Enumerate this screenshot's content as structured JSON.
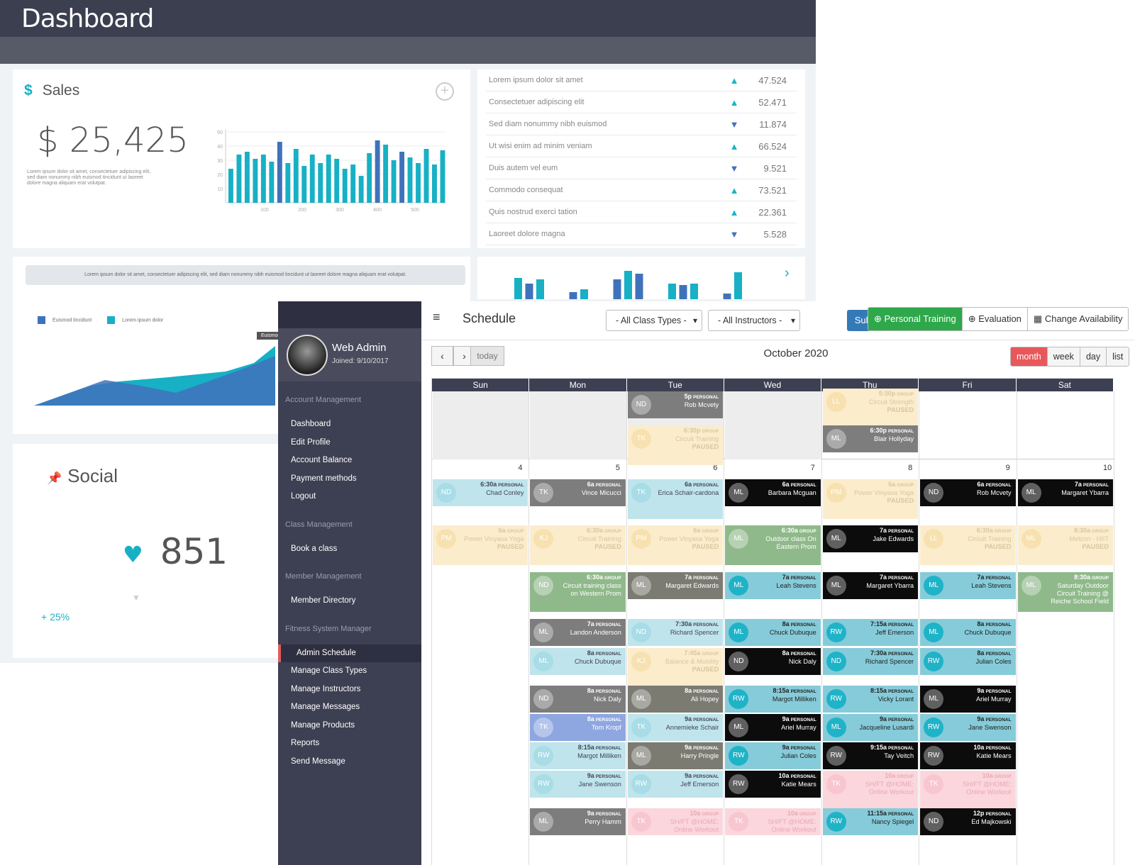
{
  "dashboard": {
    "title": "Dashboard",
    "sales": {
      "label": "Sales",
      "value": "$ 25,425",
      "desc": "Lorem ipsum dolor sit amet, consectetuer adipiscing elit, sed diam nonummy nibh euismod tincidunt ut laoreet dolore magna aliquam erat volutpat."
    },
    "stats": [
      {
        "label": "Lorem ipsum dolor sit amet",
        "dir": "up",
        "value": "47.524"
      },
      {
        "label": "Consectetuer adipiscing elit",
        "dir": "up",
        "value": "52.471"
      },
      {
        "label": "Sed diam nonummy nibh euismod",
        "dir": "down",
        "value": "11.874"
      },
      {
        "label": "Ut wisi enim ad minim veniam",
        "dir": "up",
        "value": "66.524"
      },
      {
        "label": "Duis autem vel eum",
        "dir": "down",
        "value": "9.521"
      },
      {
        "label": "Commodo consequat",
        "dir": "up",
        "value": "73.521"
      },
      {
        "label": "Quis nostrud exerci tation",
        "dir": "up",
        "value": "22.361"
      },
      {
        "label": "Laoreet dolore magna",
        "dir": "down",
        "value": "5.528"
      }
    ],
    "area": {
      "banner": "Lorem ipsum dolor sit amet, consectetuer adipiscing elit, sed diam nonummy nibh euismod tincidunt ut laoreet dolore magna aliquam erat volutpat.",
      "legend1": "Euismod tincidunt",
      "legend2": "Lorem ipsum dolor",
      "tooltip": "Euismod t"
    },
    "social": {
      "label": "Social",
      "value": "851",
      "pct": "+ 25%"
    },
    "colors": {
      "teal": "#17b0c5",
      "blue": "#4072bb"
    }
  },
  "chart_data": [
    {
      "type": "bar",
      "y_ticks": [
        "50",
        "40",
        "30",
        "20",
        "10"
      ],
      "x_ticks": [
        "100",
        "200",
        "300",
        "400",
        "500"
      ],
      "ylim": [
        0,
        50
      ],
      "series": [
        {
          "values": [
            24,
            34,
            36,
            31,
            34,
            29,
            43,
            28,
            38,
            26,
            34,
            28,
            34,
            31,
            24,
            27,
            19,
            35,
            44,
            41,
            30,
            36,
            32,
            28,
            38,
            27,
            37
          ]
        }
      ],
      "highlight_color": "#4072bb",
      "color": "#17b0c5",
      "highlight_idx": [
        6,
        18,
        21
      ]
    },
    {
      "type": "area",
      "series": [
        {
          "name": "Euismod tincidunt",
          "color": "#4072bb"
        },
        {
          "name": "Lorem ipsum dolor",
          "color": "#17b0c5"
        }
      ]
    },
    {
      "type": "bar",
      "values": [
        30,
        22,
        28,
        0,
        0,
        10,
        14,
        0,
        0,
        28,
        40,
        36,
        0,
        0,
        22,
        20,
        22,
        0,
        0,
        8,
        38
      ],
      "colors": [
        "#17b0c5",
        "#4072bb"
      ]
    }
  ],
  "sidebar": {
    "user": "Web Admin",
    "joined": "Joined: 9/10/2017",
    "sections": [
      {
        "title": "Account Management",
        "items": [
          "Dashboard",
          "Edit Profile",
          "Account Balance",
          "Payment methods",
          "Logout"
        ]
      },
      {
        "title": "Class Management",
        "items": [
          "Book a class"
        ]
      },
      {
        "title": "Member Management",
        "items": [
          "Member Directory"
        ]
      },
      {
        "title": "Fitness System Manager",
        "items": [
          "Admin Schedule",
          "Manage Class Types",
          "Manage Instructors",
          "Manage Messages",
          "Manage Products",
          "Reports",
          "Send Message"
        ]
      }
    ],
    "active": "Admin Schedule"
  },
  "schedule": {
    "title": "Schedule",
    "class_filter": "- All Class Types -",
    "instr_filter": "- All Instructors -",
    "submit": "Submit",
    "actions": [
      "Personal Training",
      "Evaluation",
      "Change Availability"
    ],
    "today": "today",
    "month": "October 2020",
    "views": [
      "month",
      "week",
      "day",
      "list"
    ],
    "dows": [
      "Sun",
      "Mon",
      "Tue",
      "Wed",
      "Thu",
      "Fri",
      "Sat"
    ],
    "day_numbers": [
      "4",
      "5",
      "6",
      "7",
      "8",
      "9",
      "10"
    ],
    "events": [
      {
        "c": 2,
        "y": 0,
        "cls": "gray",
        "av": "ND",
        "time": "5p",
        "kind": "PERSONAL",
        "name": "Rob Mcvety"
      },
      {
        "c": 4,
        "y": -4,
        "cls": "yellow paused",
        "av": "LL",
        "time": "5:30p",
        "kind": "GROUP",
        "name": "Circuit Strength",
        "status": "PAUSED"
      },
      {
        "c": 2,
        "y": 48,
        "cls": "yellow paused",
        "av": "TK",
        "time": "6:30p",
        "kind": "GROUP",
        "name": "Circuit Training",
        "status": "PAUSED"
      },
      {
        "c": 4,
        "y": 48,
        "cls": "gray",
        "av": "ML",
        "time": "6:30p",
        "kind": "PERSONAL",
        "name": "Blair Hollyday"
      },
      {
        "c": 0,
        "y": 124,
        "cls": "lteal",
        "av": "ND",
        "time": "6:30a",
        "kind": "PERSONAL",
        "name": "Chad Conley"
      },
      {
        "c": 1,
        "y": 124,
        "cls": "gray",
        "av": "TK",
        "time": "6a",
        "kind": "PERSONAL",
        "name": "Vince Micucci"
      },
      {
        "c": 2,
        "y": 124,
        "cls": "lteal paused",
        "av": "TK",
        "time": "6a",
        "kind": "PERSONAL",
        "name": "Erica Schair-cardona"
      },
      {
        "c": 3,
        "y": 124,
        "cls": "black",
        "av": "ML",
        "time": "6a",
        "kind": "PERSONAL",
        "name": "Barbara Mcguan"
      },
      {
        "c": 4,
        "y": 124,
        "cls": "yellow paused",
        "av": "PM",
        "time": "6a",
        "kind": "GROUP",
        "name": "Power Vinyasa Yoga",
        "status": "PAUSED"
      },
      {
        "c": 5,
        "y": 124,
        "cls": "black",
        "av": "ND",
        "time": "6a",
        "kind": "PERSONAL",
        "name": "Rob Mcvety"
      },
      {
        "c": 6,
        "y": 124,
        "cls": "black",
        "av": "ML",
        "time": "7a",
        "kind": "PERSONAL",
        "name": "Margaret Ybarra"
      },
      {
        "c": 0,
        "y": 189,
        "cls": "yellow paused",
        "av": "PM",
        "time": "6a",
        "kind": "GROUP",
        "name": "Power Vinyasa Yoga",
        "status": "PAUSED"
      },
      {
        "c": 1,
        "y": 189,
        "cls": "yellow paused",
        "av": "KJ",
        "time": "6:30a",
        "kind": "GROUP",
        "name": "Circuit Training",
        "status": "PAUSED"
      },
      {
        "c": 2,
        "y": 189,
        "cls": "yellow paused",
        "av": "PM",
        "time": "6a",
        "kind": "GROUP",
        "name": "Power Vinyasa Yoga",
        "status": "PAUSED"
      },
      {
        "c": 3,
        "y": 189,
        "cls": "green paused",
        "av": "ML",
        "time": "6:30a",
        "kind": "GROUP",
        "name": "Outdoor class On Eastern Prom"
      },
      {
        "c": 4,
        "y": 189,
        "cls": "black",
        "av": "ML",
        "time": "7a",
        "kind": "PERSONAL",
        "name": "Jake Edwards"
      },
      {
        "c": 5,
        "y": 189,
        "cls": "yellow paused",
        "av": "LL",
        "time": "6:30a",
        "kind": "GROUP",
        "name": "Circuit Training",
        "status": "PAUSED"
      },
      {
        "c": 6,
        "y": 189,
        "cls": "yellow paused",
        "av": "ML",
        "time": "8:30a",
        "kind": "GROUP",
        "name": "Metcon - HIIT",
        "status": "PAUSED"
      },
      {
        "c": 1,
        "y": 255,
        "cls": "green paused",
        "av": "ND",
        "time": "6:30a",
        "kind": "GROUP",
        "name": "Circuit training class on Western Prom"
      },
      {
        "c": 2,
        "y": 255,
        "cls": "olive",
        "av": "ML",
        "time": "7a",
        "kind": "PERSONAL",
        "name": "Margaret Edwards"
      },
      {
        "c": 3,
        "y": 255,
        "cls": "teal",
        "av": "ML",
        "time": "7a",
        "kind": "PERSONAL",
        "name": "Leah Stevens"
      },
      {
        "c": 4,
        "y": 255,
        "cls": "black",
        "av": "ML",
        "time": "7a",
        "kind": "PERSONAL",
        "name": "Margaret Ybarra"
      },
      {
        "c": 5,
        "y": 255,
        "cls": "teal",
        "av": "ML",
        "time": "7a",
        "kind": "PERSONAL",
        "name": "Leah Stevens"
      },
      {
        "c": 6,
        "y": 255,
        "cls": "green paused",
        "av": "ML",
        "time": "8:30a",
        "kind": "GROUP",
        "name": "Saturday Outdoor Circuit Training @ Reiche School Field"
      },
      {
        "c": 1,
        "y": 321,
        "cls": "gray",
        "av": "ML",
        "time": "7a",
        "kind": "PERSONAL",
        "name": "Landon Anderson"
      },
      {
        "c": 2,
        "y": 321,
        "cls": "lteal",
        "av": "ND",
        "time": "7:30a",
        "kind": "PERSONAL",
        "name": "Richard Spencer"
      },
      {
        "c": 3,
        "y": 321,
        "cls": "teal",
        "av": "ML",
        "time": "8a",
        "kind": "PERSONAL",
        "name": "Chuck Dubuque"
      },
      {
        "c": 4,
        "y": 321,
        "cls": "teal",
        "av": "RW",
        "time": "7:15a",
        "kind": "PERSONAL",
        "name": "Jeff Emerson"
      },
      {
        "c": 5,
        "y": 321,
        "cls": "teal",
        "av": "ML",
        "time": "8a",
        "kind": "PERSONAL",
        "name": "Chuck Dubuque"
      },
      {
        "c": 1,
        "y": 362,
        "cls": "lteal",
        "av": "ML",
        "time": "8a",
        "kind": "PERSONAL",
        "name": "Chuck Dubuque"
      },
      {
        "c": 2,
        "y": 362,
        "cls": "yellow paused",
        "av": "KJ",
        "time": "7:45a",
        "kind": "GROUP",
        "name": "Balance & Mobility",
        "status": "PAUSED"
      },
      {
        "c": 3,
        "y": 362,
        "cls": "black",
        "av": "ND",
        "time": "8a",
        "kind": "PERSONAL",
        "name": "Nick Daly"
      },
      {
        "c": 4,
        "y": 362,
        "cls": "teal",
        "av": "ND",
        "time": "7:30a",
        "kind": "PERSONAL",
        "name": "Richard Spencer"
      },
      {
        "c": 5,
        "y": 362,
        "cls": "teal",
        "av": "RW",
        "time": "8a",
        "kind": "PERSONAL",
        "name": "Julian Coles"
      },
      {
        "c": 1,
        "y": 415,
        "cls": "gray",
        "av": "ND",
        "time": "8a",
        "kind": "PERSONAL",
        "name": "Nick Daly"
      },
      {
        "c": 2,
        "y": 415,
        "cls": "olive",
        "av": "ML",
        "time": "8a",
        "kind": "PERSONAL",
        "name": "Ali Hopey"
      },
      {
        "c": 3,
        "y": 415,
        "cls": "teal",
        "av": "RW",
        "time": "8:15a",
        "kind": "PERSONAL",
        "name": "Margot Milliken"
      },
      {
        "c": 4,
        "y": 415,
        "cls": "teal",
        "av": "RW",
        "time": "8:15a",
        "kind": "PERSONAL",
        "name": "Vicky Lorant"
      },
      {
        "c": 5,
        "y": 415,
        "cls": "black",
        "av": "ML",
        "time": "9a",
        "kind": "PERSONAL",
        "name": "Ariel Murray"
      },
      {
        "c": 1,
        "y": 455,
        "cls": "blue",
        "av": "TK",
        "time": "8a",
        "kind": "PERSONAL",
        "name": "Tom Kropf"
      },
      {
        "c": 2,
        "y": 455,
        "cls": "lteal",
        "av": "TK",
        "time": "9a",
        "kind": "PERSONAL",
        "name": "Annemieke Schair"
      },
      {
        "c": 3,
        "y": 455,
        "cls": "black",
        "av": "ML",
        "time": "9a",
        "kind": "PERSONAL",
        "name": "Ariel Murray"
      },
      {
        "c": 4,
        "y": 455,
        "cls": "teal",
        "av": "ML",
        "time": "9a",
        "kind": "PERSONAL",
        "name": "Jacqueline Lusardi"
      },
      {
        "c": 5,
        "y": 455,
        "cls": "teal",
        "av": "RW",
        "time": "9a",
        "kind": "PERSONAL",
        "name": "Jane Swenson"
      },
      {
        "c": 1,
        "y": 495,
        "cls": "lteal",
        "av": "RW",
        "time": "8:15a",
        "kind": "PERSONAL",
        "name": "Margot Milliken"
      },
      {
        "c": 2,
        "y": 495,
        "cls": "olive",
        "av": "ML",
        "time": "9a",
        "kind": "PERSONAL",
        "name": "Harry Pringle"
      },
      {
        "c": 3,
        "y": 495,
        "cls": "teal",
        "av": "RW",
        "time": "9a",
        "kind": "PERSONAL",
        "name": "Julian Coles"
      },
      {
        "c": 4,
        "y": 495,
        "cls": "black",
        "av": "RW",
        "time": "9:15a",
        "kind": "PERSONAL",
        "name": "Tay Veitch"
      },
      {
        "c": 5,
        "y": 495,
        "cls": "black",
        "av": "RW",
        "time": "10a",
        "kind": "PERSONAL",
        "name": "Katie Mears"
      },
      {
        "c": 1,
        "y": 535,
        "cls": "lteal",
        "av": "RW",
        "time": "9a",
        "kind": "PERSONAL",
        "name": "Jane Swenson"
      },
      {
        "c": 2,
        "y": 535,
        "cls": "lteal",
        "av": "RW",
        "time": "9a",
        "kind": "PERSONAL",
        "name": "Jeff Emerson"
      },
      {
        "c": 3,
        "y": 535,
        "cls": "black",
        "av": "RW",
        "time": "10a",
        "kind": "PERSONAL",
        "name": "Katie Mears"
      },
      {
        "c": 4,
        "y": 535,
        "cls": "pink paused",
        "av": "TK",
        "time": "10a",
        "kind": "GROUP",
        "name": "SH/FT @HOME: Online Workout"
      },
      {
        "c": 5,
        "y": 535,
        "cls": "pink paused",
        "av": "TK",
        "time": "10a",
        "kind": "GROUP",
        "name": "SH/FT @HOME: Online Workout"
      },
      {
        "c": 1,
        "y": 588,
        "cls": "gray",
        "av": "ML",
        "time": "9a",
        "kind": "PERSONAL",
        "name": "Perry Hamm"
      },
      {
        "c": 2,
        "y": 588,
        "cls": "pink",
        "av": "TK",
        "time": "10a",
        "kind": "GROUP",
        "name": "SH/FT @HOME: Online Workout"
      },
      {
        "c": 3,
        "y": 588,
        "cls": "pink",
        "av": "TK",
        "time": "10a",
        "kind": "GROUP",
        "name": "SH/FT @HOME: Online Workout"
      },
      {
        "c": 4,
        "y": 588,
        "cls": "teal",
        "av": "RW",
        "time": "11:15a",
        "kind": "PERSONAL",
        "name": "Nancy Spiegel"
      },
      {
        "c": 5,
        "y": 588,
        "cls": "black",
        "av": "ND",
        "time": "12p",
        "kind": "PERSONAL",
        "name": "Ed Majkowski"
      }
    ]
  }
}
